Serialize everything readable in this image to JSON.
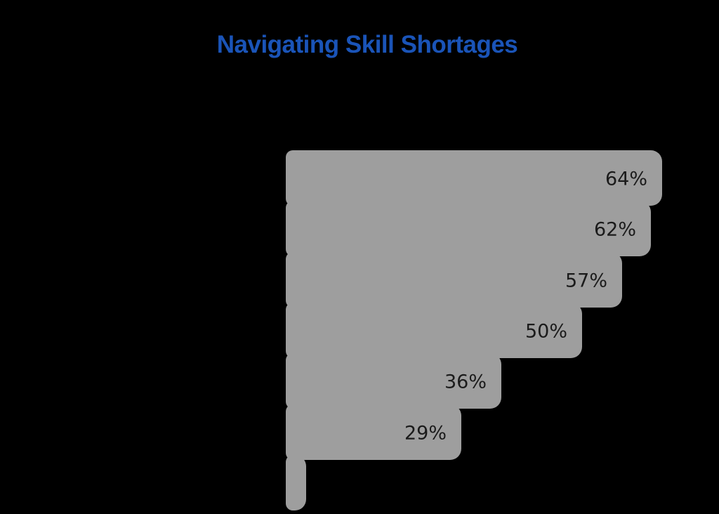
{
  "title": "Navigating Skill Shortages",
  "colors": {
    "background": "#000000",
    "title": "#1A54B8",
    "bar": "#FB8B00",
    "bar_shadow": "#9E9E9E",
    "value_label": "#1B1B1B"
  },
  "chart_data": {
    "type": "bar",
    "orientation": "horizontal",
    "title": "Navigating Skill Shortages",
    "values": [
      64,
      62,
      57,
      50,
      36,
      29,
      2
    ],
    "value_labels": [
      "64%",
      "62%",
      "57%",
      "50%",
      "36%",
      "29%",
      ""
    ],
    "xlabel": "",
    "ylabel": "",
    "xlim": [
      0,
      64
    ],
    "grid": false,
    "legend": "none",
    "value_label_position": "inside-right",
    "bar_count": 7
  }
}
